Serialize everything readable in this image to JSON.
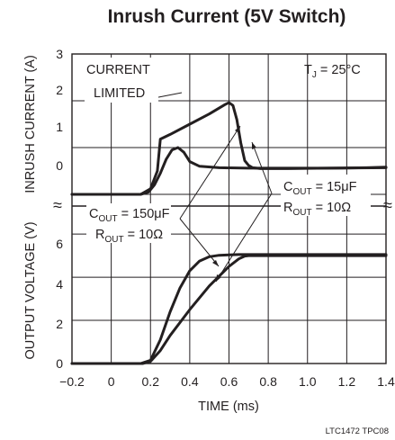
{
  "chart_data": {
    "type": "line",
    "title": "Inrush Current (5V Switch)",
    "xlabel": "TIME (ms)",
    "x_ticks": [
      "−0.2",
      "0",
      "0.2",
      "0.4",
      "0.6",
      "0.8",
      "1.0",
      "1.2",
      "1.4"
    ],
    "xlim": [
      -0.2,
      1.4
    ],
    "footer": "LTC1472 TPC08",
    "current_panel": {
      "ylabel": "INRUSH CURRENT (A)",
      "y_ticks": [
        "0",
        "1",
        "2",
        "3"
      ],
      "ylim": [
        -0.25,
        3
      ],
      "series": [
        {
          "x": [
            -0.2,
            0.15,
            0.19,
            0.22,
            0.25,
            0.28,
            0.31,
            0.34,
            0.37,
            0.4,
            0.45,
            0.55,
            0.7,
            0.9,
            1.1,
            1.3,
            1.4
          ],
          "values": [
            0.0,
            0.0,
            0.05,
            0.2,
            0.45,
            0.75,
            0.95,
            1.0,
            0.9,
            0.7,
            0.6,
            0.57,
            0.56,
            0.56,
            0.56,
            0.57,
            0.58
          ]
        },
        {
          "x": [
            -0.2,
            0.15,
            0.2,
            0.235,
            0.25,
            0.3,
            0.4,
            0.5,
            0.58,
            0.6,
            0.62,
            0.64,
            0.66,
            0.68,
            0.7,
            0.72,
            0.76,
            0.9,
            1.1,
            1.4
          ],
          "values": [
            0.0,
            0.0,
            0.12,
            0.5,
            1.18,
            1.28,
            1.5,
            1.72,
            1.92,
            1.96,
            1.9,
            1.6,
            1.1,
            0.72,
            0.62,
            0.57,
            0.55,
            0.55,
            0.56,
            0.57
          ]
        }
      ]
    },
    "voltage_panel": {
      "ylabel": "OUTPUT VOLTAGE (V)",
      "y_ticks": [
        "0",
        "2",
        "4",
        "6"
      ],
      "ylim": [
        0,
        7.3
      ],
      "series": [
        {
          "x": [
            -0.2,
            0.15,
            0.2,
            0.25,
            0.3,
            0.35,
            0.4,
            0.45,
            0.5,
            0.55,
            0.6,
            0.65,
            0.7,
            0.8,
            1.0,
            1.4
          ],
          "values": [
            0.0,
            0.0,
            0.15,
            1.1,
            2.4,
            3.5,
            4.3,
            4.75,
            4.95,
            5.02,
            5.04,
            5.05,
            5.05,
            5.05,
            5.05,
            5.05
          ]
        },
        {
          "x": [
            -0.2,
            0.16,
            0.2,
            0.25,
            0.3,
            0.4,
            0.5,
            0.6,
            0.65,
            0.68,
            0.7,
            0.8,
            1.0,
            1.4
          ],
          "values": [
            0.0,
            0.0,
            0.1,
            0.6,
            1.3,
            2.5,
            3.6,
            4.5,
            4.85,
            4.98,
            5.0,
            5.0,
            5.0,
            5.0
          ]
        }
      ]
    },
    "annotations": {
      "current_limited_line1": "CURRENT",
      "current_limited_line2": "LIMITED",
      "tj_main": "T",
      "tj_sub": "J",
      "tj_rest": " = 25°C",
      "c150_main": "C",
      "c150_sub": "OUT",
      "c150_rest": " = 150μF",
      "r150_main": "R",
      "r150_sub": "OUT",
      "r150_rest": " = 10Ω",
      "c15_main": "C",
      "c15_sub": "OUT",
      "c15_rest": " = 15μF",
      "r15_main": "R",
      "r15_sub": "OUT",
      "r15_rest": " = 10Ω",
      "break_mark": "≈"
    }
  }
}
